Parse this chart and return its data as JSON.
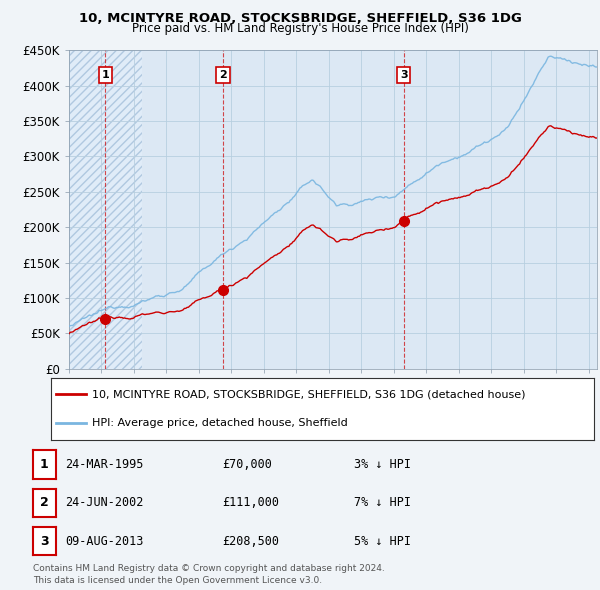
{
  "title": "10, MCINTYRE ROAD, STOCKSBRIDGE, SHEFFIELD, S36 1DG",
  "subtitle": "Price paid vs. HM Land Registry's House Price Index (HPI)",
  "ylim": [
    0,
    450000
  ],
  "yticks": [
    0,
    50000,
    100000,
    150000,
    200000,
    250000,
    300000,
    350000,
    400000,
    450000
  ],
  "ytick_labels": [
    "£0",
    "£50K",
    "£100K",
    "£150K",
    "£200K",
    "£250K",
    "£300K",
    "£350K",
    "£400K",
    "£450K"
  ],
  "sale_year_floats": [
    1995.23,
    2002.48,
    2013.6
  ],
  "sale_prices": [
    70000,
    111000,
    208500
  ],
  "sale_labels": [
    "1",
    "2",
    "3"
  ],
  "hpi_color": "#7ab6e0",
  "sale_color": "#cc0000",
  "vline_color": "#cc0000",
  "hatch_color": "#d8e8f0",
  "bg_hatch_color": "#e0ecf8",
  "legend_sale_label": "10, MCINTYRE ROAD, STOCKSBRIDGE, SHEFFIELD, S36 1DG (detached house)",
  "legend_hpi_label": "HPI: Average price, detached house, Sheffield",
  "table_data": [
    [
      "1",
      "24-MAR-1995",
      "£70,000",
      "3% ↓ HPI"
    ],
    [
      "2",
      "24-JUN-2002",
      "£111,000",
      "7% ↓ HPI"
    ],
    [
      "3",
      "09-AUG-2013",
      "£208,500",
      "5% ↓ HPI"
    ]
  ],
  "footnote": "Contains HM Land Registry data © Crown copyright and database right 2024.\nThis data is licensed under the Open Government Licence v3.0.",
  "background_color": "#f0f4f8",
  "plot_bg_color": "#dce8f4",
  "grid_color": "#b8cfe0",
  "xlim_start": 1993.0,
  "xlim_end": 2025.5
}
